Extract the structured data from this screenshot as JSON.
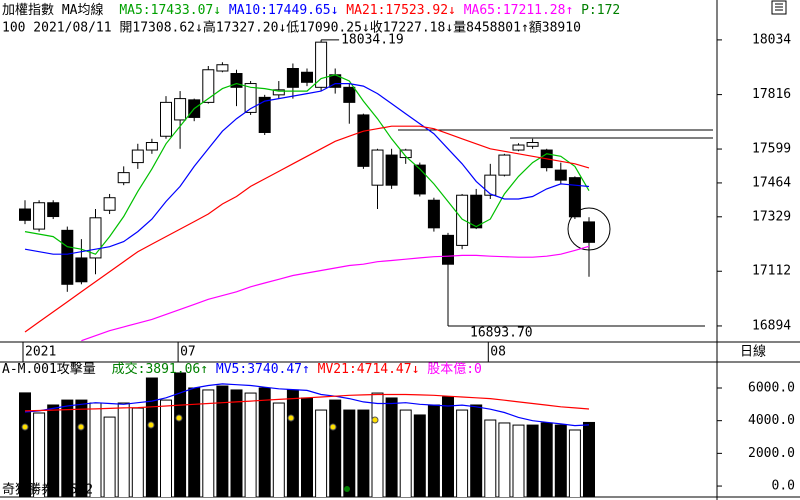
{
  "chart_data": [
    {
      "type": "candlestick",
      "title": "加權指數 MA均線",
      "info": "100 2021/08/11 開17308.62↓高17327.20↓低17090.25↓收17227.18↓量8458801↑額38910",
      "period_label": "日線",
      "high_label": "18034.19",
      "low_label": "16893.70",
      "categories": [
        "2021",
        null,
        null,
        null,
        null,
        null,
        null,
        null,
        null,
        null,
        null,
        "07",
        null,
        null,
        null,
        null,
        null,
        null,
        null,
        null,
        null,
        null,
        null,
        null,
        null,
        null,
        null,
        null,
        null,
        null,
        null,
        null,
        null,
        "08",
        null,
        null,
        null,
        null,
        null,
        null,
        null
      ],
      "ohlc": {
        "open": [
          17360,
          17280,
          17385,
          17275,
          17165,
          17165,
          17355,
          17465,
          17545,
          17595,
          17650,
          17715,
          17795,
          17785,
          17910,
          17900,
          17745,
          17805,
          17815,
          17920,
          17905,
          17845,
          17895,
          17845,
          17735,
          17455,
          17575,
          17565,
          17535,
          17395,
          17255,
          17215,
          17415,
          17415,
          17495,
          17595,
          17610,
          17595,
          17515,
          17485,
          17308.62
        ],
        "high": [
          17395,
          17395,
          17395,
          17290,
          17240,
          17360,
          17420,
          17530,
          17620,
          17640,
          17810,
          17830,
          17800,
          17930,
          17945,
          17915,
          17870,
          17815,
          17870,
          17940,
          17920,
          18034.19,
          17920,
          17860,
          17740,
          17600,
          17600,
          17600,
          17545,
          17405,
          17265,
          17420,
          17440,
          17540,
          17580,
          17622,
          17640,
          17600,
          17545,
          17490,
          17327.2
        ],
        "low": [
          17300,
          17270,
          17320,
          17030,
          17060,
          17100,
          17340,
          17455,
          17520,
          17580,
          17640,
          17600,
          17710,
          17780,
          17905,
          17770,
          17735,
          17655,
          17800,
          17800,
          17850,
          17830,
          17820,
          17700,
          17520,
          17360,
          17440,
          17540,
          17410,
          17270,
          16893.7,
          17200,
          17280,
          17400,
          17490,
          17590,
          17600,
          17510,
          17460,
          17320,
          17090.25
        ],
        "close": [
          17315,
          17385,
          17330,
          17060,
          17070,
          17325,
          17405,
          17505,
          17595,
          17625,
          17785,
          17800,
          17725,
          17915,
          17935,
          17845,
          17860,
          17665,
          17835,
          17845,
          17865,
          18025,
          17845,
          17785,
          17530,
          17595,
          17455,
          17595,
          17420,
          17285,
          17140,
          17415,
          17285,
          17495,
          17575,
          17615,
          17625,
          17525,
          17475,
          17329,
          17227.18
        ]
      },
      "series": [
        {
          "name": "MA5:17433.07↓",
          "color": "#00c000",
          "values": [
            17270,
            17260,
            17250,
            17210,
            17200,
            17180,
            17250,
            17330,
            17430,
            17520,
            17620,
            17690,
            17760,
            17800,
            17840,
            17860,
            17845,
            17840,
            17830,
            17830,
            17830,
            17880,
            17895,
            17870,
            17790,
            17720,
            17640,
            17570,
            17520,
            17460,
            17390,
            17320,
            17290,
            17320,
            17420,
            17490,
            17545,
            17580,
            17570,
            17530,
            17433.07
          ]
        },
        {
          "name": "MA10:17449.65↓",
          "color": "#0000ff",
          "values": [
            17200,
            17190,
            17180,
            17180,
            17190,
            17200,
            17210,
            17230,
            17270,
            17320,
            17390,
            17450,
            17530,
            17600,
            17670,
            17720,
            17760,
            17790,
            17800,
            17810,
            17820,
            17830,
            17860,
            17860,
            17850,
            17820,
            17780,
            17740,
            17700,
            17660,
            17600,
            17540,
            17470,
            17420,
            17400,
            17400,
            17410,
            17440,
            17460,
            17455,
            17449.65
          ]
        },
        {
          "name": "MA21:17523.92↓",
          "color": "#ff0000",
          "values": [
            16870,
            16910,
            16950,
            16990,
            17030,
            17070,
            17110,
            17150,
            17190,
            17220,
            17250,
            17280,
            17310,
            17340,
            17380,
            17410,
            17450,
            17480,
            17510,
            17540,
            17570,
            17600,
            17630,
            17650,
            17670,
            17680,
            17690,
            17690,
            17690,
            17680,
            17660,
            17640,
            17620,
            17600,
            17590,
            17580,
            17570,
            17560,
            17550,
            17540,
            17523.92
          ]
        },
        {
          "name": "MA65:17211.28↑",
          "color": "#ff00ff",
          "values": [
            null,
            null,
            null,
            null,
            16835,
            16855,
            16875,
            16890,
            16905,
            16920,
            16940,
            16960,
            16980,
            17000,
            17015,
            17030,
            17050,
            17065,
            17080,
            17095,
            17105,
            17115,
            17125,
            17135,
            17140,
            17150,
            17155,
            17160,
            17165,
            17170,
            17172,
            17175,
            17175,
            17172,
            17170,
            17168,
            17168,
            17172,
            17180,
            17195,
            17211.28
          ]
        }
      ],
      "extra_legend": {
        "text": "P:172",
        "color": "#008000"
      },
      "ylim": [
        16830,
        18193
      ],
      "yticks": [
        16894,
        17112,
        17329,
        17464,
        17599,
        17816,
        18034
      ]
    },
    {
      "type": "bar",
      "title": "A-M.001攻擊量",
      "caption": "奇狐勝券 v5.2",
      "series": [
        {
          "name": "成交:3891.06↑",
          "color": "#008000",
          "values": [
            5700,
            4470,
            4960,
            5260,
            5260,
            5080,
            4220,
            5080,
            4770,
            6610,
            5260,
            6920,
            6000,
            5880,
            6120,
            5880,
            5690,
            6000,
            5080,
            5880,
            5390,
            4650,
            5260,
            4650,
            4650,
            5690,
            5390,
            4650,
            4350,
            4960,
            5450,
            4650,
            4960,
            4040,
            3860,
            3730,
            3730,
            3860,
            3730,
            3430,
            3891.06
          ],
          "bar_colors": [
            "#000",
            "#fff",
            "#000",
            "#000",
            "#000",
            "#fff",
            "#fff",
            "#fff",
            "#fff",
            "#000",
            "#fff",
            "#000",
            "#000",
            "#fff",
            "#000",
            "#000",
            "#fff",
            "#000",
            "#fff",
            "#000",
            "#000",
            "#fff",
            "#000",
            "#000",
            "#000",
            "#fff",
            "#000",
            "#fff",
            "#000",
            "#000",
            "#000",
            "#fff",
            "#000",
            "#fff",
            "#fff",
            "#fff",
            "#000",
            "#000",
            "#000",
            "#fff",
            "#000"
          ]
        },
        {
          "name": "MV5:3740.47↑",
          "color": "#0000ff",
          "values": [
            4530,
            4600,
            4750,
            4900,
            5000,
            5100,
            5050,
            5000,
            5100,
            5200,
            5400,
            5700,
            6000,
            6150,
            6250,
            6200,
            6150,
            6050,
            5950,
            5900,
            5850,
            5600,
            5500,
            5350,
            5150,
            5050,
            5050,
            5100,
            5000,
            4950,
            4900,
            4950,
            4850,
            4700,
            4500,
            4200,
            4000,
            3900,
            3800,
            3700,
            3740.47
          ]
        },
        {
          "name": "MV21:4714.47↓",
          "color": "#ff0000",
          "values": [
            4600,
            4620,
            4650,
            4680,
            4700,
            4720,
            4750,
            4780,
            4800,
            4850,
            4900,
            4950,
            5000,
            5050,
            5100,
            5150,
            5200,
            5250,
            5300,
            5350,
            5400,
            5450,
            5500,
            5550,
            5580,
            5600,
            5600,
            5600,
            5580,
            5550,
            5500,
            5450,
            5400,
            5350,
            5250,
            5150,
            5050,
            4950,
            4850,
            4780,
            4714.47
          ]
        }
      ],
      "extra_legend": {
        "text": "股本億:0",
        "color": "#ff00ff"
      },
      "ylim": [
        -670,
        7590
      ],
      "yticks": [
        {
          "value": 0,
          "label": "0.0"
        },
        {
          "value": 2000,
          "label": "2000.0"
        },
        {
          "value": 4000,
          "label": "4000.0"
        },
        {
          "value": 6000,
          "label": "6000.0"
        }
      ]
    }
  ]
}
